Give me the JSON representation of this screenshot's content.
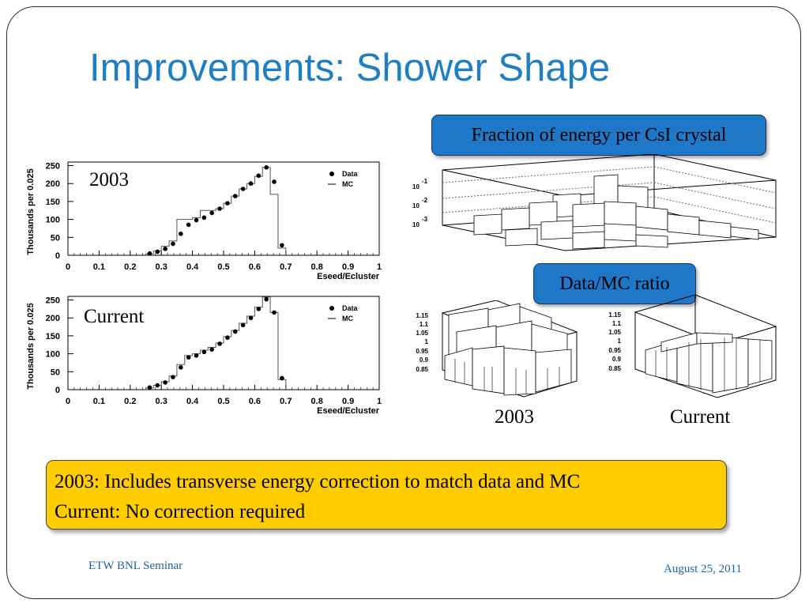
{
  "slide": {
    "title": "Improvements: Shower Shape",
    "callout_energy": "Fraction of energy per CsI crystal",
    "callout_ratio": "Data/MC ratio",
    "label_2003_hist": "2003",
    "label_current_hist": "Current",
    "label_2003_lego": "2003",
    "label_current_lego": "Current",
    "note_line1": "2003: Includes transverse energy correction to match data and MC",
    "note_line2": "Current: No correction required",
    "footer_left": "ETW BNL Seminar",
    "footer_right": "August 25, 2011"
  },
  "lego_labels": {
    "energy_ticks": [
      "10",
      "-1",
      "10",
      "-2",
      "10",
      "-3"
    ],
    "ratio_ticks": [
      "1.15",
      "1.1",
      "1.05",
      "1",
      "0.95",
      "0.9",
      "0.85"
    ]
  },
  "chart_data": [
    {
      "type": "scatter",
      "xlabel": "Eseed/Ecluster",
      "ylabel": "Thousands per 0.025",
      "xlim": [
        0,
        1
      ],
      "ylim": [
        0,
        260
      ],
      "x_ticks": [
        "0",
        "0.1",
        "0.2",
        "0.3",
        "0.4",
        "0.5",
        "0.6",
        "0.7",
        "0.8",
        "0.9",
        "1"
      ],
      "y_ticks": [
        "0",
        "50",
        "100",
        "150",
        "200",
        "250"
      ],
      "legend": [
        "Data",
        "MC"
      ],
      "series": [
        {
          "name": "Data",
          "x": [
            0.2625,
            0.2875,
            0.3125,
            0.3375,
            0.3625,
            0.3875,
            0.4125,
            0.4375,
            0.4625,
            0.4875,
            0.5125,
            0.5375,
            0.5625,
            0.5875,
            0.6125,
            0.6375,
            0.6625,
            0.6875
          ],
          "values": [
            5,
            10,
            18,
            32,
            60,
            85,
            98,
            105,
            118,
            130,
            145,
            165,
            185,
            200,
            222,
            245,
            205,
            28
          ]
        },
        {
          "name": "MC",
          "x": [
            0.2625,
            0.2875,
            0.3125,
            0.3375,
            0.3625,
            0.3875,
            0.4125,
            0.4375,
            0.4625,
            0.4875,
            0.5125,
            0.5375,
            0.5625,
            0.5875,
            0.6125,
            0.6375,
            0.6625,
            0.6875
          ],
          "values": [
            4,
            12,
            25,
            40,
            100,
            100,
            105,
            125,
            125,
            130,
            145,
            165,
            185,
            200,
            220,
            245,
            170,
            20
          ]
        }
      ]
    },
    {
      "type": "scatter",
      "xlabel": "Eseed/Ecluster",
      "ylabel": "Thousands per 0.025",
      "xlim": [
        0,
        1
      ],
      "ylim": [
        0,
        260
      ],
      "x_ticks": [
        "0",
        "0.1",
        "0.2",
        "0.3",
        "0.4",
        "0.5",
        "0.6",
        "0.7",
        "0.8",
        "0.9",
        "1"
      ],
      "y_ticks": [
        "0",
        "50",
        "100",
        "150",
        "200",
        "250"
      ],
      "legend": [
        "Data",
        "MC"
      ],
      "series": [
        {
          "name": "Data",
          "x": [
            0.2625,
            0.2875,
            0.3125,
            0.3375,
            0.3625,
            0.3875,
            0.4125,
            0.4375,
            0.4625,
            0.4875,
            0.5125,
            0.5375,
            0.5625,
            0.5875,
            0.6125,
            0.6375,
            0.6625,
            0.6875
          ],
          "values": [
            6,
            12,
            20,
            35,
            62,
            90,
            95,
            105,
            112,
            128,
            145,
            162,
            180,
            200,
            225,
            252,
            215,
            32
          ]
        },
        {
          "name": "MC",
          "x": [
            0.2625,
            0.2875,
            0.3125,
            0.3375,
            0.3625,
            0.3875,
            0.4125,
            0.4375,
            0.4625,
            0.4875,
            0.5125,
            0.5375,
            0.5625,
            0.5875,
            0.6125,
            0.6375,
            0.6625,
            0.6875
          ],
          "values": [
            5,
            12,
            22,
            38,
            70,
            95,
            100,
            110,
            118,
            130,
            148,
            165,
            185,
            205,
            230,
            258,
            215,
            28
          ]
        }
      ]
    }
  ]
}
